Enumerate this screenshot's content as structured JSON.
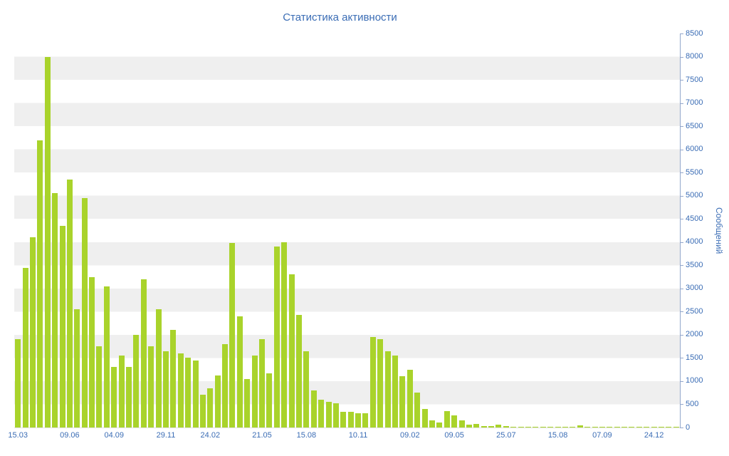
{
  "colors": {
    "bar": "#a9d32b",
    "text": "#3b6db5",
    "stripe": "#efefef",
    "axis": "#93a7cc",
    "background": "#ffffff"
  },
  "chart_data": {
    "type": "bar",
    "title": "Статистика активности",
    "ylabel": "Сообщений",
    "xlabel": "",
    "ylim": [
      0,
      8500
    ],
    "grid": "horizontal-stripes",
    "legend": "none",
    "y_ticks": [
      0,
      500,
      1000,
      1500,
      2000,
      2500,
      3000,
      3500,
      4000,
      4500,
      5000,
      5500,
      6000,
      6500,
      7000,
      7500,
      8000,
      8500
    ],
    "x_ticks": [
      {
        "label": "15.03",
        "bar": 0
      },
      {
        "label": "09.06",
        "bar": 7
      },
      {
        "label": "04.09",
        "bar": 13
      },
      {
        "label": "29.11",
        "bar": 20
      },
      {
        "label": "24.02",
        "bar": 26
      },
      {
        "label": "21.05",
        "bar": 33
      },
      {
        "label": "15.08",
        "bar": 39
      },
      {
        "label": "10.11",
        "bar": 46
      },
      {
        "label": "09.02",
        "bar": 53
      },
      {
        "label": "09.05",
        "bar": 59
      },
      {
        "label": "25.07",
        "bar": 66
      },
      {
        "label": "15.08",
        "bar": 73
      },
      {
        "label": "07.09",
        "bar": 79
      },
      {
        "label": "24.12",
        "bar": 86
      }
    ],
    "values": [
      1900,
      3450,
      4100,
      6200,
      8000,
      5050,
      4350,
      5350,
      2550,
      4950,
      3250,
      1750,
      3050,
      1300,
      1550,
      1300,
      2000,
      3200,
      1750,
      2550,
      1650,
      2100,
      1600,
      1500,
      1450,
      700,
      850,
      1120,
      1800,
      3975,
      2400,
      1050,
      1550,
      1900,
      1170,
      3900,
      4000,
      3300,
      2425,
      1650,
      800,
      600,
      550,
      530,
      340,
      340,
      310,
      300,
      1950,
      1900,
      1650,
      1550,
      1100,
      1250,
      750,
      400,
      160,
      110,
      350,
      260,
      150,
      60,
      80,
      30,
      25,
      60,
      25,
      15,
      10,
      12,
      15,
      10,
      10,
      12,
      20,
      10,
      40,
      12,
      10,
      10,
      15,
      10,
      12,
      10,
      10,
      15,
      10,
      12,
      10,
      15
    ]
  }
}
